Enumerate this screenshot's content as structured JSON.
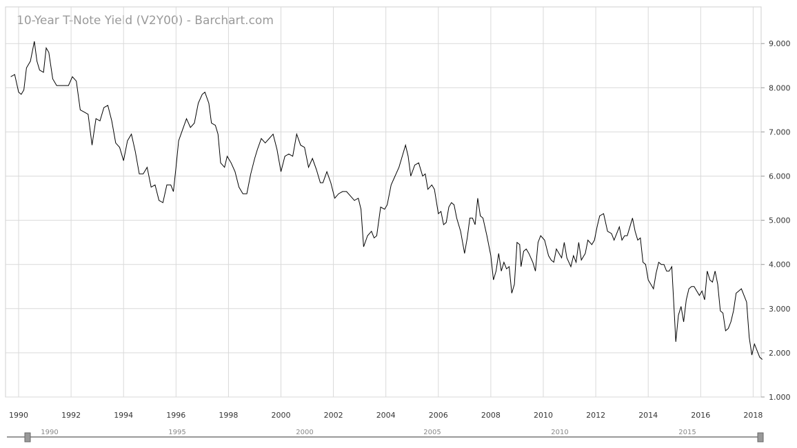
{
  "chart_data": {
    "type": "line",
    "title": "10-Year T-Note Yield (V2Y00) - Barchart.com",
    "xlim": [
      1989.65,
      1990.0,
      2018.4
    ],
    "ylim": [
      0.9,
      10.0
    ],
    "y_ticks": [
      "1.000",
      "2.000",
      "3.000",
      "4.000",
      "5.000",
      "6.000",
      "7.000",
      "8.000",
      "9.000"
    ],
    "x_ticks": [
      "1990",
      "1992",
      "1994",
      "1996",
      "1998",
      "2000",
      "2002",
      "2004",
      "2006",
      "2008",
      "2010",
      "2012",
      "2014",
      "2016",
      "2018"
    ],
    "grid": true,
    "series": [
      {
        "values": [
          [
            1989.7,
            8.25
          ],
          [
            1989.85,
            8.3
          ],
          [
            1990.0,
            7.9
          ],
          [
            1990.1,
            7.85
          ],
          [
            1990.2,
            7.95
          ],
          [
            1990.3,
            8.45
          ],
          [
            1990.45,
            8.6
          ],
          [
            1990.6,
            9.05
          ],
          [
            1990.7,
            8.6
          ],
          [
            1990.8,
            8.4
          ],
          [
            1990.95,
            8.35
          ],
          [
            1991.05,
            8.9
          ],
          [
            1991.15,
            8.8
          ],
          [
            1991.3,
            8.2
          ],
          [
            1991.45,
            8.05
          ],
          [
            1991.6,
            8.05
          ],
          [
            1991.75,
            8.05
          ],
          [
            1991.9,
            8.05
          ],
          [
            1992.05,
            8.25
          ],
          [
            1992.2,
            8.15
          ],
          [
            1992.35,
            7.5
          ],
          [
            1992.5,
            7.45
          ],
          [
            1992.65,
            7.4
          ],
          [
            1992.8,
            6.7
          ],
          [
            1992.95,
            7.3
          ],
          [
            1993.1,
            7.25
          ],
          [
            1993.25,
            7.55
          ],
          [
            1993.4,
            7.6
          ],
          [
            1993.55,
            7.25
          ],
          [
            1993.7,
            6.75
          ],
          [
            1993.85,
            6.65
          ],
          [
            1994.0,
            6.35
          ],
          [
            1994.15,
            6.8
          ],
          [
            1994.3,
            6.95
          ],
          [
            1994.45,
            6.55
          ],
          [
            1994.6,
            6.05
          ],
          [
            1994.75,
            6.05
          ],
          [
            1994.9,
            6.2
          ],
          [
            1995.05,
            5.75
          ],
          [
            1995.2,
            5.8
          ],
          [
            1995.35,
            5.45
          ],
          [
            1995.5,
            5.4
          ],
          [
            1995.65,
            5.8
          ],
          [
            1995.8,
            5.8
          ],
          [
            1995.9,
            5.65
          ],
          [
            1996.0,
            6.2
          ],
          [
            1996.1,
            6.8
          ],
          [
            1996.25,
            7.05
          ],
          [
            1996.4,
            7.3
          ],
          [
            1996.55,
            7.1
          ],
          [
            1996.7,
            7.2
          ],
          [
            1996.85,
            7.65
          ],
          [
            1997.0,
            7.85
          ],
          [
            1997.1,
            7.9
          ],
          [
            1997.25,
            7.65
          ],
          [
            1997.35,
            7.2
          ],
          [
            1997.5,
            7.15
          ],
          [
            1997.6,
            6.95
          ],
          [
            1997.7,
            6.3
          ],
          [
            1997.85,
            6.2
          ],
          [
            1997.95,
            6.45
          ],
          [
            1998.1,
            6.3
          ],
          [
            1998.25,
            6.1
          ],
          [
            1998.4,
            5.75
          ],
          [
            1998.55,
            5.6
          ],
          [
            1998.7,
            5.6
          ],
          [
            1998.85,
            6.05
          ],
          [
            1999.0,
            6.4
          ],
          [
            1999.1,
            6.6
          ],
          [
            1999.25,
            6.85
          ],
          [
            1999.4,
            6.75
          ],
          [
            1999.55,
            6.85
          ],
          [
            1999.7,
            6.95
          ],
          [
            1999.85,
            6.6
          ],
          [
            2000.0,
            6.1
          ],
          [
            2000.15,
            6.45
          ],
          [
            2000.3,
            6.5
          ],
          [
            2000.45,
            6.45
          ],
          [
            2000.6,
            6.95
          ],
          [
            2000.75,
            6.7
          ],
          [
            2000.9,
            6.65
          ],
          [
            2001.05,
            6.2
          ],
          [
            2001.2,
            6.4
          ],
          [
            2001.35,
            6.15
          ],
          [
            2001.5,
            5.85
          ],
          [
            2001.6,
            5.85
          ],
          [
            2001.75,
            6.1
          ],
          [
            2001.9,
            5.85
          ],
          [
            2002.05,
            5.5
          ],
          [
            2002.2,
            5.6
          ],
          [
            2002.35,
            5.65
          ],
          [
            2002.5,
            5.65
          ],
          [
            2002.65,
            5.55
          ],
          [
            2002.8,
            5.45
          ],
          [
            2002.95,
            5.5
          ],
          [
            2003.05,
            5.25
          ],
          [
            2003.15,
            4.4
          ],
          [
            2003.3,
            4.65
          ],
          [
            2003.45,
            4.75
          ],
          [
            2003.55,
            4.6
          ],
          [
            2003.65,
            4.65
          ],
          [
            2003.8,
            5.3
          ],
          [
            2003.95,
            5.25
          ],
          [
            2004.05,
            5.35
          ],
          [
            2004.2,
            5.8
          ],
          [
            2004.35,
            6.0
          ],
          [
            2004.5,
            6.2
          ],
          [
            2004.6,
            6.4
          ],
          [
            2004.75,
            6.7
          ],
          [
            2004.85,
            6.45
          ],
          [
            2004.95,
            6.0
          ],
          [
            2005.1,
            6.25
          ],
          [
            2005.25,
            6.3
          ],
          [
            2005.4,
            6.0
          ],
          [
            2005.5,
            6.05
          ],
          [
            2005.6,
            5.7
          ],
          [
            2005.75,
            5.8
          ],
          [
            2005.85,
            5.7
          ],
          [
            2006.0,
            5.15
          ],
          [
            2006.1,
            5.2
          ],
          [
            2006.2,
            4.9
          ],
          [
            2006.3,
            4.95
          ],
          [
            2006.4,
            5.3
          ],
          [
            2006.5,
            5.4
          ],
          [
            2006.6,
            5.35
          ],
          [
            2006.7,
            5.05
          ],
          [
            2006.85,
            4.75
          ],
          [
            2007.0,
            4.25
          ],
          [
            2007.1,
            4.6
          ],
          [
            2007.2,
            5.05
          ],
          [
            2007.3,
            5.05
          ],
          [
            2007.4,
            4.9
          ],
          [
            2007.5,
            5.5
          ],
          [
            2007.6,
            5.1
          ],
          [
            2007.7,
            5.05
          ],
          [
            2007.85,
            4.65
          ],
          [
            2008.0,
            4.2
          ],
          [
            2008.1,
            3.65
          ],
          [
            2008.2,
            3.85
          ],
          [
            2008.3,
            4.25
          ],
          [
            2008.4,
            3.85
          ],
          [
            2008.5,
            4.05
          ],
          [
            2008.6,
            3.9
          ],
          [
            2008.7,
            3.95
          ],
          [
            2008.8,
            3.35
          ],
          [
            2008.9,
            3.55
          ],
          [
            2009.0,
            4.5
          ],
          [
            2009.1,
            4.45
          ],
          [
            2009.15,
            3.95
          ],
          [
            2009.25,
            4.3
          ],
          [
            2009.35,
            4.35
          ],
          [
            2009.45,
            4.25
          ],
          [
            2009.6,
            4.05
          ],
          [
            2009.7,
            3.85
          ],
          [
            2009.8,
            4.5
          ],
          [
            2009.9,
            4.65
          ],
          [
            2010.05,
            4.55
          ],
          [
            2010.2,
            4.2
          ],
          [
            2010.3,
            4.1
          ],
          [
            2010.4,
            4.05
          ],
          [
            2010.5,
            4.35
          ],
          [
            2010.6,
            4.25
          ],
          [
            2010.7,
            4.15
          ],
          [
            2010.8,
            4.5
          ],
          [
            2010.9,
            4.15
          ],
          [
            2011.05,
            3.95
          ],
          [
            2011.15,
            4.2
          ],
          [
            2011.25,
            4.05
          ],
          [
            2011.35,
            4.5
          ],
          [
            2011.45,
            4.1
          ],
          [
            2011.6,
            4.25
          ],
          [
            2011.7,
            4.55
          ],
          [
            2011.85,
            4.45
          ],
          [
            2011.95,
            4.55
          ],
          [
            2012.05,
            4.85
          ],
          [
            2012.15,
            5.1
          ],
          [
            2012.3,
            5.15
          ],
          [
            2012.45,
            4.75
          ],
          [
            2012.6,
            4.7
          ],
          [
            2012.7,
            4.55
          ],
          [
            2012.8,
            4.7
          ],
          [
            2012.9,
            4.85
          ],
          [
            2013.0,
            4.55
          ],
          [
            2013.1,
            4.65
          ],
          [
            2013.2,
            4.65
          ],
          [
            2013.3,
            4.85
          ],
          [
            2013.4,
            5.05
          ],
          [
            2013.5,
            4.75
          ],
          [
            2013.6,
            4.55
          ],
          [
            2013.7,
            4.6
          ],
          [
            2013.8,
            4.05
          ],
          [
            2013.9,
            4.0
          ],
          [
            2014.0,
            3.65
          ],
          [
            2014.1,
            3.55
          ],
          [
            2014.2,
            3.45
          ],
          [
            2014.3,
            3.8
          ],
          [
            2014.4,
            4.05
          ],
          [
            2014.5,
            4.0
          ],
          [
            2014.6,
            4.0
          ],
          [
            2014.7,
            3.85
          ],
          [
            2014.8,
            3.85
          ],
          [
            2014.9,
            3.95
          ],
          [
            2015.0,
            2.85
          ],
          [
            2015.05,
            2.25
          ],
          [
            2015.15,
            2.85
          ],
          [
            2015.25,
            3.05
          ],
          [
            2015.35,
            2.7
          ],
          [
            2015.45,
            3.2
          ],
          [
            2015.55,
            3.45
          ],
          [
            2015.65,
            3.5
          ],
          [
            2015.75,
            3.5
          ],
          [
            2015.85,
            3.4
          ],
          [
            2015.95,
            3.3
          ],
          [
            2016.05,
            3.4
          ],
          [
            2016.15,
            3.2
          ],
          [
            2016.25,
            3.85
          ],
          [
            2016.35,
            3.65
          ],
          [
            2016.45,
            3.6
          ],
          [
            2016.55,
            3.85
          ],
          [
            2016.65,
            3.55
          ],
          [
            2016.75,
            2.95
          ],
          [
            2016.85,
            2.9
          ],
          [
            2016.95,
            2.5
          ],
          [
            2017.05,
            2.55
          ],
          [
            2017.15,
            2.7
          ],
          [
            2017.25,
            2.95
          ],
          [
            2017.35,
            3.35
          ],
          [
            2017.45,
            3.4
          ],
          [
            2017.55,
            3.45
          ],
          [
            2017.65,
            3.3
          ],
          [
            2017.75,
            3.15
          ],
          [
            2017.85,
            2.35
          ],
          [
            2017.95,
            1.95
          ],
          [
            2018.05,
            2.2
          ],
          [
            2018.15,
            2.05
          ],
          [
            2018.25,
            1.9
          ],
          [
            2018.35,
            1.85
          ]
        ]
      }
    ]
  }
}
